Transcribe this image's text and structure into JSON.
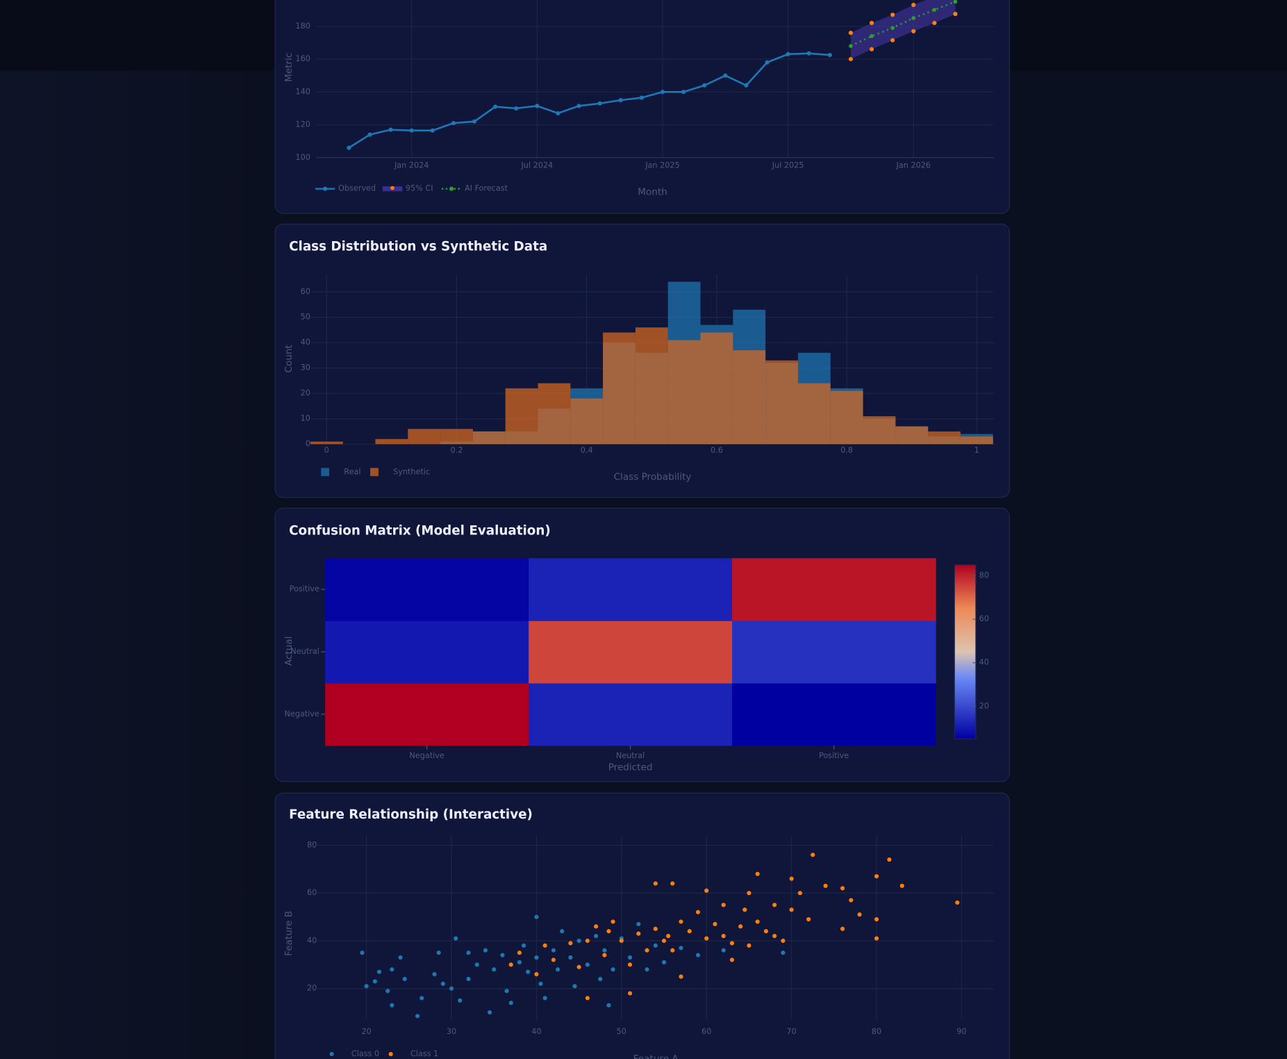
{
  "chart_data": [
    {
      "type": "line",
      "x_label": "Month",
      "y_label": "Metric",
      "xlim": [
        "2023-08",
        "2026-05"
      ],
      "xticks": [
        {
          "value": "2024-01",
          "label": "Jan 2024"
        },
        {
          "value": "2024-07",
          "label": "Jul 2024"
        },
        {
          "value": "2025-01",
          "label": "Jan 2025"
        },
        {
          "value": "2025-07",
          "label": "Jul 2025"
        },
        {
          "value": "2026-01",
          "label": "Jan 2026"
        }
      ],
      "ylim": [
        100,
        200
      ],
      "yticks": [
        100,
        120,
        140,
        160,
        180
      ],
      "grid": true,
      "series": [
        {
          "name": "Observed",
          "color": "#1f77b4",
          "x": [
            "2023-10",
            "2023-11",
            "2023-12",
            "2024-01",
            "2024-02",
            "2024-03",
            "2024-04",
            "2024-05",
            "2024-06",
            "2024-07",
            "2024-08",
            "2024-09",
            "2024-10",
            "2024-11",
            "2024-12",
            "2025-01",
            "2025-02",
            "2025-03",
            "2025-04",
            "2025-05",
            "2025-06",
            "2025-07",
            "2025-08",
            "2025-09"
          ],
          "values": [
            106,
            114,
            117,
            116.5,
            116.5,
            121,
            122,
            131,
            130,
            131.5,
            127,
            131.5,
            133,
            135,
            136.5,
            140,
            140,
            144,
            150,
            144,
            158,
            163,
            163.5,
            162.5
          ]
        },
        {
          "name": "95% CI",
          "color": "#ff7f0e",
          "band_color": "#3a2f8c",
          "x": [
            "2025-10",
            "2025-11",
            "2025-12",
            "2026-01",
            "2026-02",
            "2026-03"
          ],
          "lower": [
            160,
            166,
            171.5,
            177,
            182,
            187.5
          ],
          "upper": [
            176,
            182,
            187,
            193,
            198,
            203
          ]
        },
        {
          "name": "AI Forecast",
          "color": "#2ca02c",
          "dash": true,
          "x": [
            "2025-10",
            "2025-11",
            "2025-12",
            "2026-01",
            "2026-02",
            "2026-03"
          ],
          "values": [
            168,
            174,
            179,
            185,
            190,
            195
          ]
        }
      ]
    },
    {
      "type": "histogram",
      "title": "Class Distribution vs Synthetic Data",
      "x_label": "Class Probability",
      "y_label": "Count",
      "bins": [
        -0.025,
        0.025,
        0.075,
        0.125,
        0.175,
        0.225,
        0.275,
        0.325,
        0.375,
        0.425,
        0.475,
        0.525,
        0.575,
        0.625,
        0.675,
        0.725,
        0.775,
        0.825,
        0.875,
        0.925,
        0.975,
        1.025
      ],
      "xlim": [
        -0.025,
        1.025
      ],
      "xticks": [
        0,
        0.2,
        0.4,
        0.6,
        0.8,
        1
      ],
      "ylim": [
        0,
        67
      ],
      "yticks": [
        0,
        10,
        20,
        30,
        40,
        50,
        60
      ],
      "grid": true,
      "opacity": 0.72,
      "series": [
        {
          "name": "Real",
          "color": "#1f77b4",
          "values": [
            0,
            0,
            0,
            0,
            1,
            5,
            5,
            14,
            22,
            40,
            36,
            64,
            47,
            53,
            32,
            36,
            22,
            10,
            7,
            3,
            4
          ]
        },
        {
          "name": "Synthetic",
          "color": "#d8691f",
          "values": [
            1,
            0,
            2,
            6,
            6,
            5,
            22,
            24,
            18,
            44,
            46,
            41,
            44,
            37,
            33,
            24,
            21,
            11,
            7,
            5,
            3
          ]
        }
      ]
    },
    {
      "type": "heatmap",
      "title": "Confusion Matrix (Model Evaluation)",
      "x_label": "Predicted",
      "y_label": "Actual",
      "x": [
        "Negative",
        "Neutral",
        "Positive"
      ],
      "y": [
        "Negative",
        "Neutral",
        "Positive"
      ],
      "z": [
        [
          85,
          12,
          5
        ],
        [
          10,
          75,
          15
        ],
        [
          6,
          12,
          82
        ]
      ],
      "zlim": [
        5,
        85
      ],
      "colorbar_ticks": [
        20,
        40,
        60,
        80
      ],
      "colorscale": [
        [
          0,
          "#0000a0"
        ],
        [
          0.35,
          "#6a89f7"
        ],
        [
          0.5,
          "#dcc3b0"
        ],
        [
          0.75,
          "#ec8a56"
        ],
        [
          1,
          "#b0001f"
        ]
      ]
    },
    {
      "type": "scatter",
      "title": "Feature Relationship (Interactive)",
      "x_label": "Feature A",
      "y_label": "Feature B",
      "xlim": [
        13.5,
        93.8
      ],
      "xticks": [
        20,
        30,
        40,
        50,
        60,
        70,
        80,
        90
      ],
      "ylim": [
        7,
        84
      ],
      "yticks": [
        20,
        40,
        60,
        80
      ],
      "grid": true,
      "series": [
        {
          "name": "Class 0",
          "color": "#1f77b4",
          "x": [
            19.5,
            20,
            21,
            21.5,
            22.5,
            23,
            23,
            24,
            24.5,
            26,
            26.5,
            28,
            28.5,
            29,
            30,
            30.5,
            31,
            32,
            32,
            33,
            34,
            34.5,
            35,
            36,
            36.5,
            37,
            38,
            38.5,
            39,
            40,
            40,
            40.5,
            41,
            42,
            42.5,
            43,
            44,
            44.5,
            45,
            46,
            47,
            47.5,
            48,
            48.5,
            49,
            50,
            51,
            52,
            53,
            54,
            55,
            57,
            59,
            62,
            69
          ],
          "values": [
            35,
            21,
            23,
            27,
            19,
            28,
            13,
            33,
            24,
            8.5,
            16,
            26,
            35,
            22,
            20,
            41,
            15,
            24,
            35,
            30,
            36,
            10,
            28,
            34,
            19,
            14,
            31,
            38,
            27,
            33,
            50,
            22,
            16,
            36,
            28,
            44,
            33,
            21,
            40,
            30,
            42,
            24,
            36,
            13,
            28,
            41,
            33,
            47,
            28,
            38,
            31,
            37,
            34,
            36,
            35
          ]
        },
        {
          "name": "Class 1",
          "color": "#ff7f0e",
          "x": [
            37,
            38,
            40,
            41,
            42,
            44,
            45,
            46,
            46,
            47,
            48,
            48.5,
            49,
            50,
            51,
            51,
            52,
            53,
            54,
            54,
            55,
            55.5,
            56,
            56,
            57,
            57,
            58,
            59,
            60,
            60,
            61,
            62,
            62,
            63,
            63,
            64,
            64.5,
            65,
            65,
            66,
            66,
            67,
            68,
            68,
            69,
            70,
            70,
            71,
            72,
            72.5,
            74,
            76,
            76,
            77,
            78,
            80,
            80,
            80,
            81.5,
            83,
            89.5
          ],
          "values": [
            30,
            35,
            26,
            38,
            32,
            39,
            29,
            40,
            16,
            46,
            34,
            44,
            48,
            40,
            30,
            18,
            43,
            36,
            45,
            64,
            40,
            42,
            36,
            64,
            25,
            48,
            44,
            52,
            41,
            61,
            47,
            42,
            55,
            39,
            32,
            46,
            53,
            60,
            38,
            48,
            68,
            44,
            55,
            42,
            40,
            53,
            66,
            60,
            49,
            76,
            63,
            45,
            62,
            57,
            51,
            41,
            49,
            67,
            74,
            63,
            56
          ]
        }
      ]
    }
  ]
}
